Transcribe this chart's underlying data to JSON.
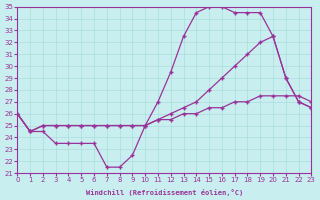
{
  "xlabel": "Windchill (Refroidissement éolien,°C)",
  "xlim": [
    0,
    23
  ],
  "ylim": [
    21,
    35
  ],
  "xticks": [
    0,
    1,
    2,
    3,
    4,
    5,
    6,
    7,
    8,
    9,
    10,
    11,
    12,
    13,
    14,
    15,
    16,
    17,
    18,
    19,
    20,
    21,
    22,
    23
  ],
  "yticks": [
    21,
    22,
    23,
    24,
    25,
    26,
    27,
    28,
    29,
    30,
    31,
    32,
    33,
    34,
    35
  ],
  "bg_color": "#c8eef0",
  "line_color": "#993399",
  "grid_color": "#aadddd",
  "line1_x": [
    0,
    1,
    2,
    3,
    4,
    5,
    6,
    7,
    8,
    9,
    10,
    11,
    12,
    13,
    14,
    15,
    16,
    17,
    18,
    19,
    20,
    21,
    22,
    23
  ],
  "line1_y": [
    26,
    24.5,
    24.5,
    23.5,
    23.5,
    23.5,
    23.5,
    21.5,
    21.5,
    22.5,
    25,
    27,
    29.5,
    32.5,
    34.5,
    35,
    35,
    34.5,
    34.5,
    34.5,
    32.5,
    29,
    27,
    26.5
  ],
  "line2_x": [
    0,
    1,
    2,
    3,
    4,
    5,
    6,
    7,
    8,
    9,
    10,
    11,
    12,
    13,
    14,
    15,
    16,
    17,
    18,
    19,
    20,
    21,
    22,
    23
  ],
  "line2_y": [
    26,
    24.5,
    25,
    25,
    25,
    25,
    25,
    25,
    25,
    25,
    25,
    25.5,
    26,
    26.5,
    27,
    28,
    29,
    30,
    31,
    32,
    32.5,
    29,
    27,
    26.5
  ],
  "line3_x": [
    0,
    1,
    2,
    3,
    4,
    5,
    6,
    7,
    8,
    9,
    10,
    11,
    12,
    13,
    14,
    15,
    16,
    17,
    18,
    19,
    20,
    21,
    22,
    23
  ],
  "line3_y": [
    26,
    24.5,
    25,
    25,
    25,
    25,
    25,
    25,
    25,
    25,
    25,
    25.5,
    25.5,
    26,
    26,
    26.5,
    26.5,
    27,
    27,
    27.5,
    27.5,
    27.5,
    27.5,
    27
  ]
}
